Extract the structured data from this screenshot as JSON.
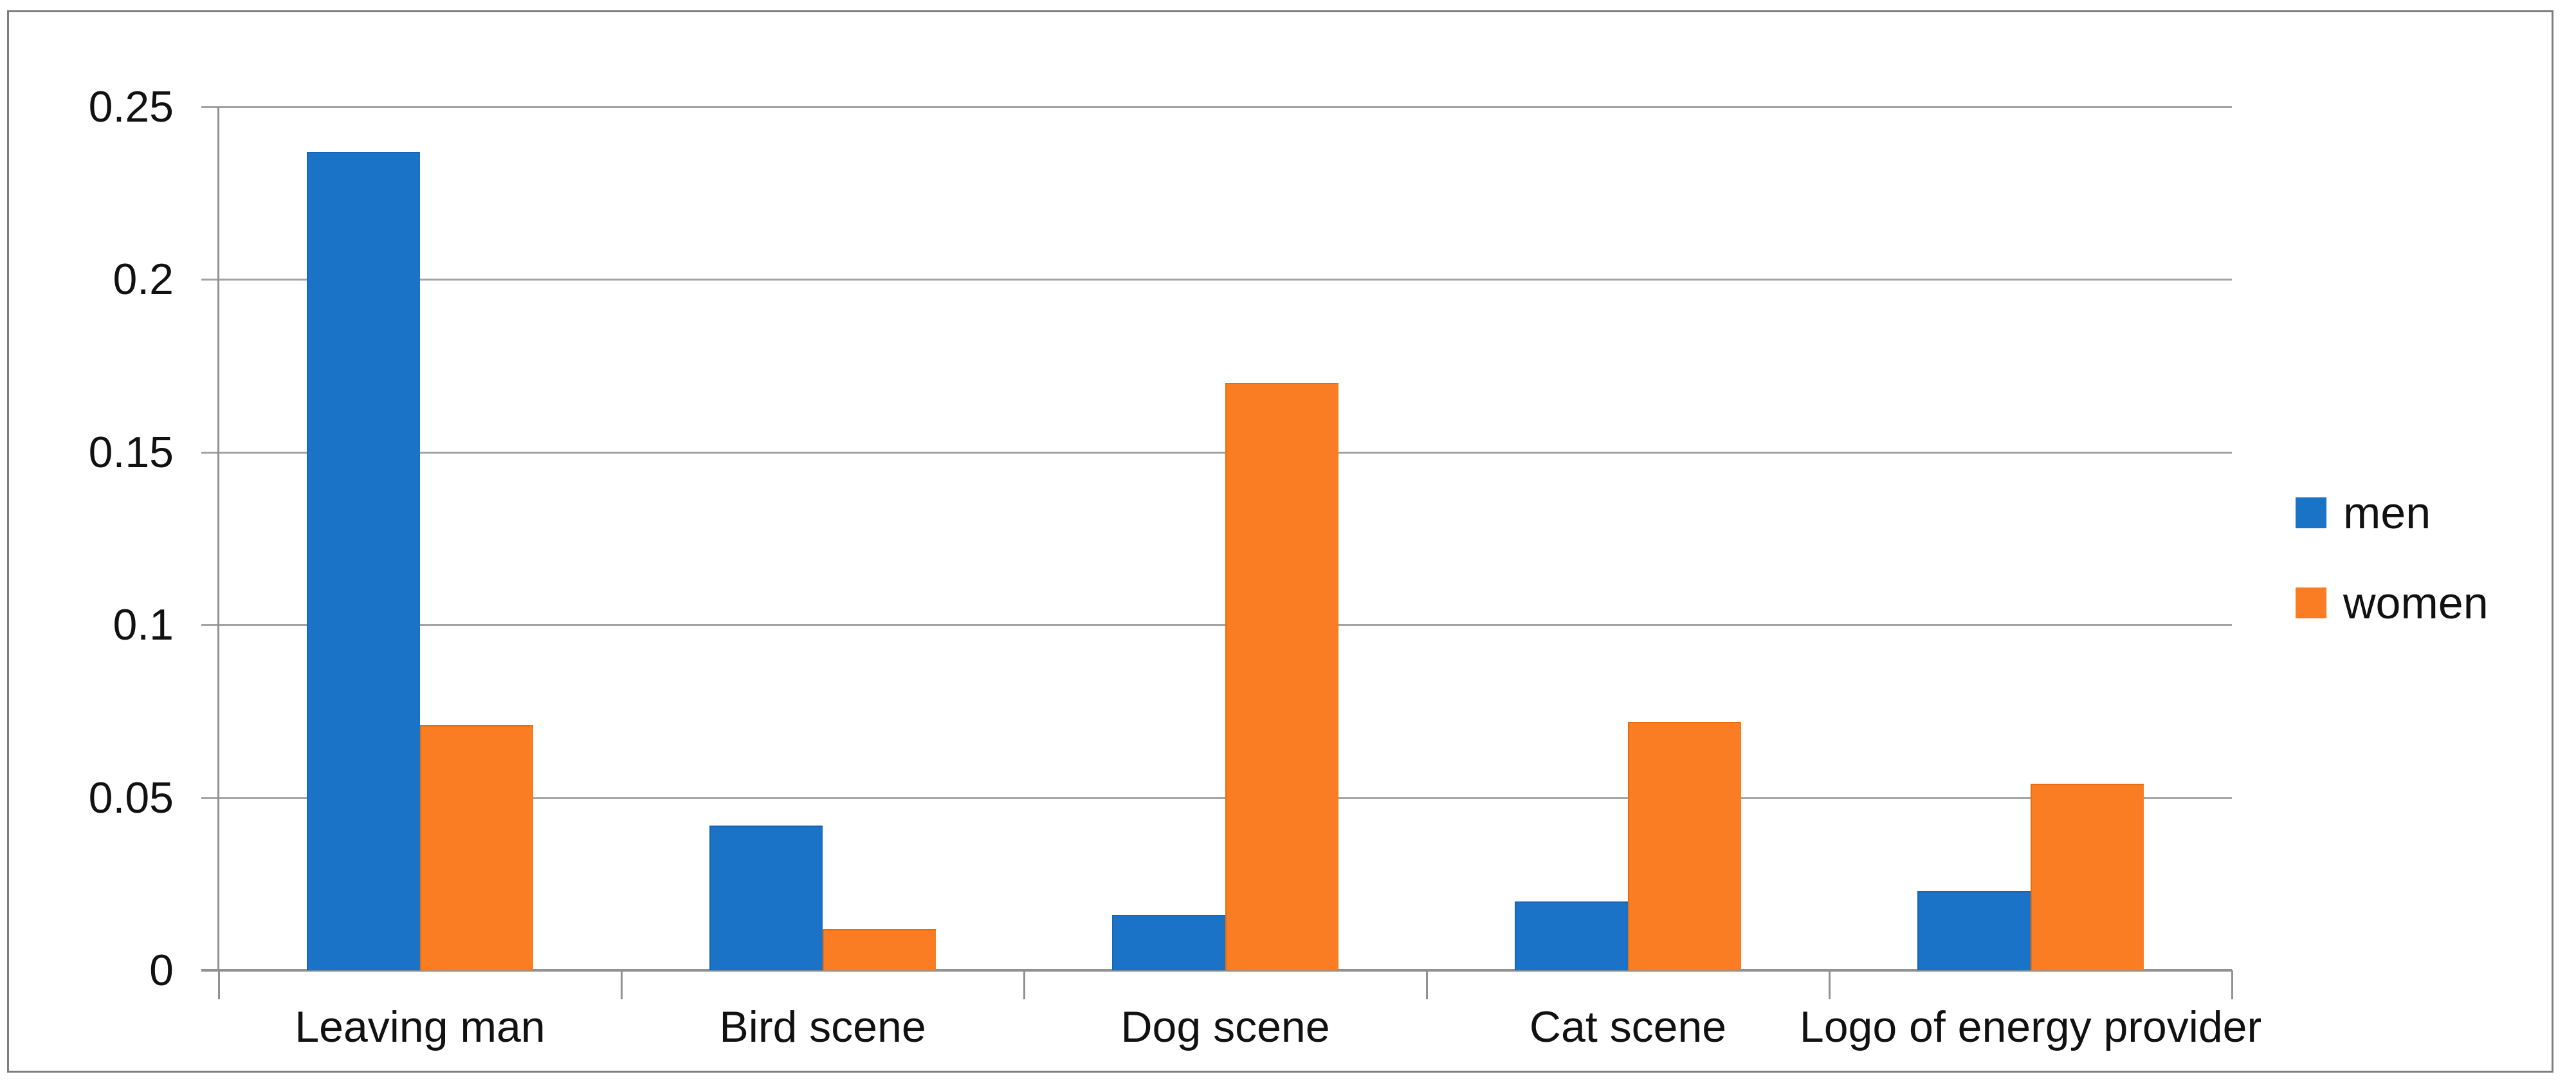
{
  "chart_data": {
    "type": "bar",
    "title": "",
    "categories": [
      "Leaving man",
      "Bird scene",
      "Dog scene",
      "Cat scene",
      "Logo of energy provider"
    ],
    "series": [
      {
        "name": "men",
        "color": "#1b73c8",
        "edge_color": "#1565b4",
        "values": [
          0.237,
          0.042,
          0.016,
          0.02,
          0.023
        ]
      },
      {
        "name": "women",
        "color": "#fb7d23",
        "edge_color": "#e56e0e",
        "values": [
          0.071,
          0.012,
          0.17,
          0.072,
          0.054
        ]
      }
    ],
    "xlabel": "",
    "ylabel": "",
    "ylim": [
      0,
      0.25
    ],
    "y_ticks": [
      {
        "value": 0,
        "label": "0"
      },
      {
        "value": 0.05,
        "label": "0.05"
      },
      {
        "value": 0.1,
        "label": "0.1"
      },
      {
        "value": 0.15,
        "label": "0.15"
      },
      {
        "value": 0.2,
        "label": "0.2"
      },
      {
        "value": 0.25,
        "label": "0.25"
      }
    ],
    "grid": true,
    "legend_position": "right",
    "colors": {
      "background": "#ffffff",
      "gridline": "#a3a3a3",
      "axis": "#919191",
      "outer_border": "#7e7e7e",
      "text": "#111111"
    }
  }
}
